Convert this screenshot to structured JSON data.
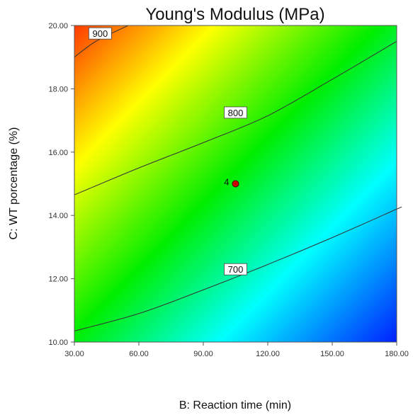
{
  "chart_data": {
    "type": "contour",
    "title": "Young's Modulus (MPa)",
    "xlabel": "B: Reaction time (min)",
    "ylabel": "C: WT porcentage (%)",
    "xlim": [
      30,
      180
    ],
    "ylim": [
      10,
      20
    ],
    "x_ticks": [
      "30.00",
      "60.00",
      "90.00",
      "120.00",
      "150.00",
      "180.00"
    ],
    "y_ticks": [
      "10.00",
      "12.00",
      "14.00",
      "16.00",
      "18.00",
      "20.00"
    ],
    "colormap": [
      "#0000ff",
      "#00ffff",
      "#00ff00",
      "#ffff00",
      "#ff0000"
    ],
    "contours": [
      {
        "label": "700",
        "points": [
          [
            30,
            10.35
          ],
          [
            60,
            10.9
          ],
          [
            90,
            11.65
          ],
          [
            120,
            12.45
          ],
          [
            150,
            13.3
          ],
          [
            180,
            14.2
          ],
          [
            180,
            14.2
          ]
        ],
        "label_at": [
          105,
          12.3
        ]
      },
      {
        "label": "800",
        "points": [
          [
            30,
            14.65
          ],
          [
            60,
            15.5
          ],
          [
            90,
            16.3
          ],
          [
            120,
            17.15
          ],
          [
            150,
            18.3
          ],
          [
            180,
            19.5
          ]
        ],
        "label_at": [
          105,
          17.25
        ]
      },
      {
        "label": "900",
        "points": [
          [
            30,
            19.0
          ],
          [
            40,
            19.5
          ],
          [
            55,
            20.0
          ]
        ],
        "label_at": [
          42,
          19.75
        ]
      }
    ],
    "design_points": [
      {
        "x": 105,
        "y": 15.0,
        "label": "4",
        "color": "#cc0000"
      }
    ]
  }
}
